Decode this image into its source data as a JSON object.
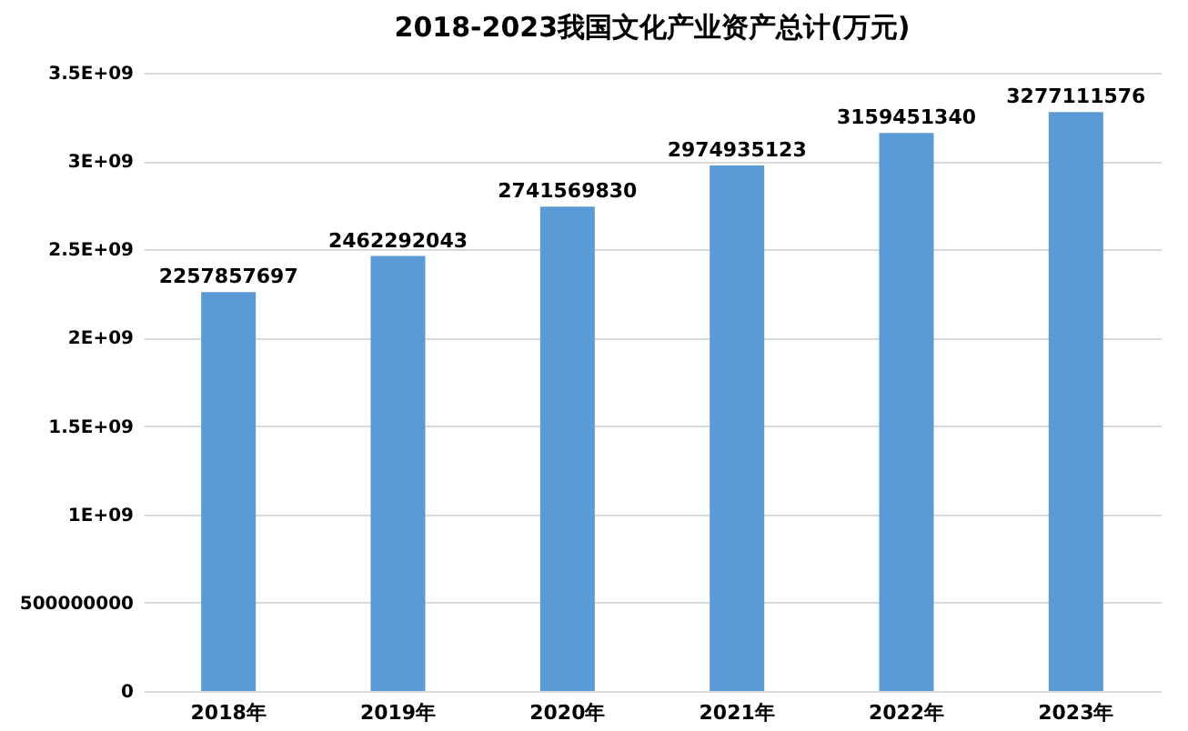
{
  "chart_data": {
    "type": "bar",
    "title": "2018-2023我国文化产业资产总计(万元)",
    "categories": [
      "2018年",
      "2019年",
      "2020年",
      "2021年",
      "2022年",
      "2023年"
    ],
    "values": [
      2257857697,
      2462292043,
      2741569830,
      2974935123,
      3159451340,
      3277111576
    ],
    "color": "#5b9bd5",
    "data_labels": true,
    "grid": "y",
    "ylim": [
      0,
      3500000000
    ],
    "yticks": [
      0,
      500000000,
      {
        "value": 1000000000,
        "label": "1E+09"
      },
      {
        "value": 1500000000,
        "label": "1.5E+09"
      },
      {
        "value": 2000000000,
        "label": "2E+09"
      },
      {
        "value": 2500000000,
        "label": "2.5E+09"
      },
      {
        "value": 3000000000,
        "label": "3E+09"
      },
      {
        "value": 3500000000,
        "label": "3.5E+09"
      }
    ]
  }
}
